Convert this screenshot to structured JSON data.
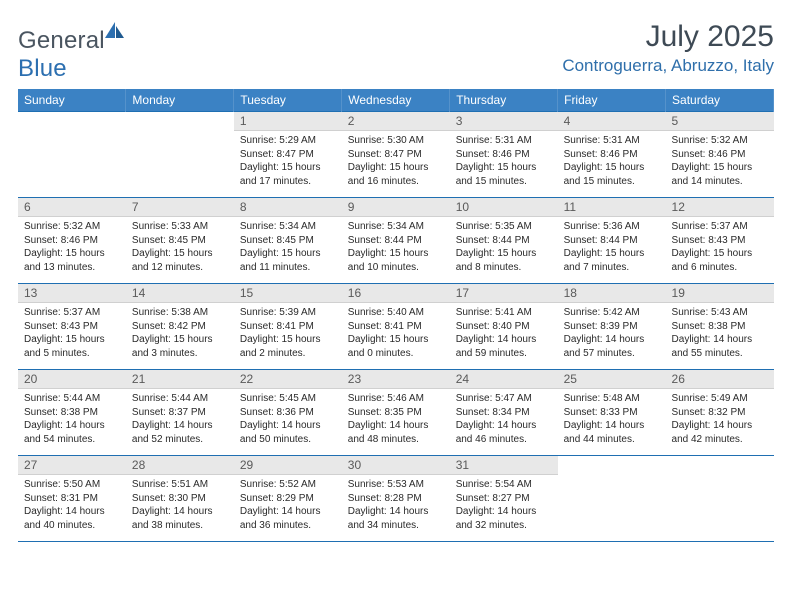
{
  "brand": {
    "part1": "General",
    "part2": "Blue"
  },
  "title": "July 2025",
  "location": "Controguerra, Abruzzo, Italy",
  "weekdays": [
    "Sunday",
    "Monday",
    "Tuesday",
    "Wednesday",
    "Thursday",
    "Friday",
    "Saturday"
  ],
  "colors": {
    "header_blue": "#3b82c4",
    "accent_blue": "#1f6fb2",
    "daynum_bg": "#e8e8e8",
    "text": "#3a3a3a"
  },
  "labels": {
    "sunrise": "Sunrise:",
    "sunset": "Sunset:",
    "daylight": "Daylight:"
  },
  "weeks": [
    [
      null,
      null,
      {
        "n": "1",
        "sr": "5:29 AM",
        "ss": "8:47 PM",
        "dl": "15 hours and 17 minutes."
      },
      {
        "n": "2",
        "sr": "5:30 AM",
        "ss": "8:47 PM",
        "dl": "15 hours and 16 minutes."
      },
      {
        "n": "3",
        "sr": "5:31 AM",
        "ss": "8:46 PM",
        "dl": "15 hours and 15 minutes."
      },
      {
        "n": "4",
        "sr": "5:31 AM",
        "ss": "8:46 PM",
        "dl": "15 hours and 15 minutes."
      },
      {
        "n": "5",
        "sr": "5:32 AM",
        "ss": "8:46 PM",
        "dl": "15 hours and 14 minutes."
      }
    ],
    [
      {
        "n": "6",
        "sr": "5:32 AM",
        "ss": "8:46 PM",
        "dl": "15 hours and 13 minutes."
      },
      {
        "n": "7",
        "sr": "5:33 AM",
        "ss": "8:45 PM",
        "dl": "15 hours and 12 minutes."
      },
      {
        "n": "8",
        "sr": "5:34 AM",
        "ss": "8:45 PM",
        "dl": "15 hours and 11 minutes."
      },
      {
        "n": "9",
        "sr": "5:34 AM",
        "ss": "8:44 PM",
        "dl": "15 hours and 10 minutes."
      },
      {
        "n": "10",
        "sr": "5:35 AM",
        "ss": "8:44 PM",
        "dl": "15 hours and 8 minutes."
      },
      {
        "n": "11",
        "sr": "5:36 AM",
        "ss": "8:44 PM",
        "dl": "15 hours and 7 minutes."
      },
      {
        "n": "12",
        "sr": "5:37 AM",
        "ss": "8:43 PM",
        "dl": "15 hours and 6 minutes."
      }
    ],
    [
      {
        "n": "13",
        "sr": "5:37 AM",
        "ss": "8:43 PM",
        "dl": "15 hours and 5 minutes."
      },
      {
        "n": "14",
        "sr": "5:38 AM",
        "ss": "8:42 PM",
        "dl": "15 hours and 3 minutes."
      },
      {
        "n": "15",
        "sr": "5:39 AM",
        "ss": "8:41 PM",
        "dl": "15 hours and 2 minutes."
      },
      {
        "n": "16",
        "sr": "5:40 AM",
        "ss": "8:41 PM",
        "dl": "15 hours and 0 minutes."
      },
      {
        "n": "17",
        "sr": "5:41 AM",
        "ss": "8:40 PM",
        "dl": "14 hours and 59 minutes."
      },
      {
        "n": "18",
        "sr": "5:42 AM",
        "ss": "8:39 PM",
        "dl": "14 hours and 57 minutes."
      },
      {
        "n": "19",
        "sr": "5:43 AM",
        "ss": "8:38 PM",
        "dl": "14 hours and 55 minutes."
      }
    ],
    [
      {
        "n": "20",
        "sr": "5:44 AM",
        "ss": "8:38 PM",
        "dl": "14 hours and 54 minutes."
      },
      {
        "n": "21",
        "sr": "5:44 AM",
        "ss": "8:37 PM",
        "dl": "14 hours and 52 minutes."
      },
      {
        "n": "22",
        "sr": "5:45 AM",
        "ss": "8:36 PM",
        "dl": "14 hours and 50 minutes."
      },
      {
        "n": "23",
        "sr": "5:46 AM",
        "ss": "8:35 PM",
        "dl": "14 hours and 48 minutes."
      },
      {
        "n": "24",
        "sr": "5:47 AM",
        "ss": "8:34 PM",
        "dl": "14 hours and 46 minutes."
      },
      {
        "n": "25",
        "sr": "5:48 AM",
        "ss": "8:33 PM",
        "dl": "14 hours and 44 minutes."
      },
      {
        "n": "26",
        "sr": "5:49 AM",
        "ss": "8:32 PM",
        "dl": "14 hours and 42 minutes."
      }
    ],
    [
      {
        "n": "27",
        "sr": "5:50 AM",
        "ss": "8:31 PM",
        "dl": "14 hours and 40 minutes."
      },
      {
        "n": "28",
        "sr": "5:51 AM",
        "ss": "8:30 PM",
        "dl": "14 hours and 38 minutes."
      },
      {
        "n": "29",
        "sr": "5:52 AM",
        "ss": "8:29 PM",
        "dl": "14 hours and 36 minutes."
      },
      {
        "n": "30",
        "sr": "5:53 AM",
        "ss": "8:28 PM",
        "dl": "14 hours and 34 minutes."
      },
      {
        "n": "31",
        "sr": "5:54 AM",
        "ss": "8:27 PM",
        "dl": "14 hours and 32 minutes."
      },
      null,
      null
    ]
  ]
}
